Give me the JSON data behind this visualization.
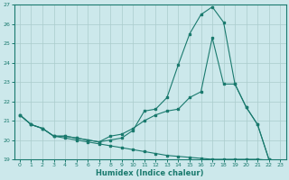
{
  "xlabel": "Humidex (Indice chaleur)",
  "bg_color": "#cce8eb",
  "line_color": "#1a7a6e",
  "grid_color": "#aacccc",
  "xlim": [
    -0.5,
    23.5
  ],
  "ylim": [
    19,
    27
  ],
  "xticks": [
    0,
    1,
    2,
    3,
    4,
    5,
    6,
    7,
    8,
    9,
    10,
    11,
    12,
    13,
    14,
    15,
    16,
    17,
    18,
    19,
    20,
    21,
    22,
    23
  ],
  "yticks": [
    19,
    20,
    21,
    22,
    23,
    24,
    25,
    26,
    27
  ],
  "line1_x": [
    0,
    1,
    2,
    3,
    4,
    5,
    6,
    7,
    8,
    9,
    10,
    11,
    12,
    13,
    14,
    15,
    16,
    17,
    18,
    19,
    20,
    21,
    22,
    23
  ],
  "line1_y": [
    21.3,
    20.8,
    20.6,
    20.2,
    20.2,
    20.1,
    20.0,
    19.9,
    20.0,
    20.1,
    20.5,
    21.5,
    21.6,
    22.2,
    23.9,
    25.5,
    26.5,
    26.9,
    26.1,
    22.9,
    21.7,
    20.8,
    19.0,
    18.9
  ],
  "line2_x": [
    0,
    1,
    2,
    3,
    4,
    5,
    6,
    7,
    8,
    9,
    10,
    11,
    12,
    13,
    14,
    15,
    16,
    17,
    18,
    19,
    20,
    21,
    22,
    23
  ],
  "line2_y": [
    21.3,
    20.8,
    20.6,
    20.2,
    20.2,
    20.1,
    20.0,
    19.9,
    20.2,
    20.3,
    20.6,
    21.0,
    21.3,
    21.5,
    21.6,
    22.2,
    22.5,
    25.3,
    22.9,
    22.9,
    21.7,
    20.8,
    19.0,
    18.9
  ],
  "line3_x": [
    0,
    1,
    2,
    3,
    4,
    5,
    6,
    7,
    8,
    9,
    10,
    11,
    12,
    13,
    14,
    15,
    16,
    17,
    18,
    19,
    20,
    21,
    22,
    23
  ],
  "line3_y": [
    21.3,
    20.8,
    20.6,
    20.2,
    20.1,
    20.0,
    19.9,
    19.8,
    19.7,
    19.6,
    19.5,
    19.4,
    19.3,
    19.2,
    19.15,
    19.1,
    19.05,
    19.0,
    19.0,
    19.0,
    19.0,
    19.0,
    18.95,
    18.9
  ]
}
